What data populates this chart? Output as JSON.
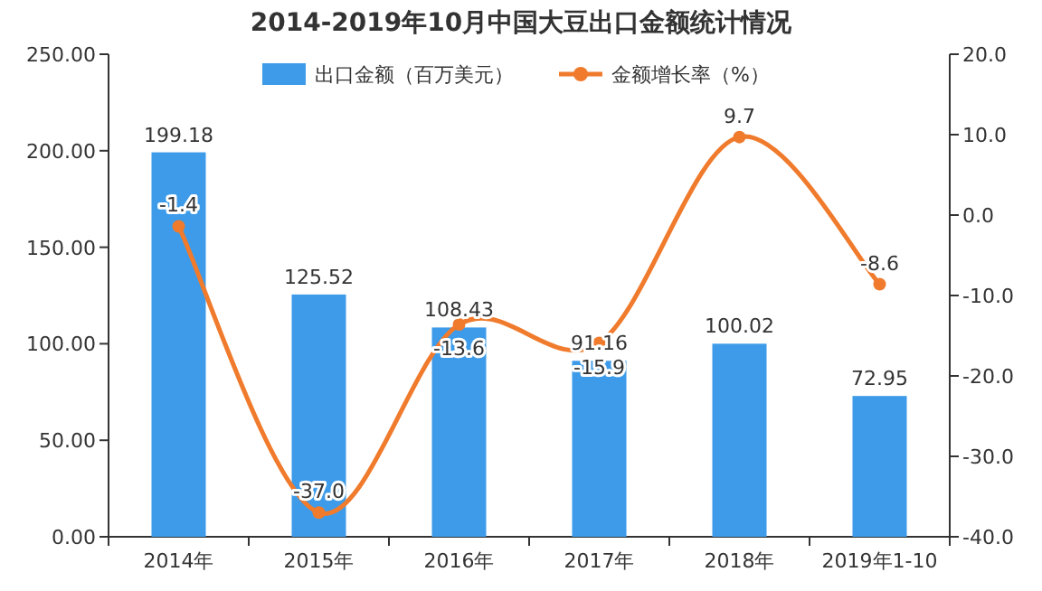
{
  "chart_data": {
    "type": "bar",
    "title": "2014-2019年10月中国大豆出口金额统计情况",
    "categories": [
      "2014年",
      "2015年",
      "2016年",
      "2017年",
      "2018年",
      "2019年1-10"
    ],
    "series": [
      {
        "name": "出口金额（百万美元）",
        "color": "#3d9be9",
        "values": [
          199.18,
          125.52,
          108.43,
          91.16,
          100.02,
          72.95
        ],
        "value_labels": [
          "199.18",
          "125.52",
          "108.43",
          "91.16",
          "100.02",
          "72.95"
        ]
      },
      {
        "name": "金额增长率（%）",
        "type": "line",
        "axis": "y2",
        "color": "#f07b2d",
        "marker": "circle",
        "values": [
          -1.4,
          -37.0,
          -13.6,
          -15.9,
          9.7,
          -8.6
        ],
        "value_labels": [
          "-1.4",
          "-37.0",
          "-13.6",
          "-15.9",
          "9.7",
          "-8.6"
        ]
      }
    ],
    "ylim": [
      0,
      250
    ],
    "yticks": [
      {
        "value": 0,
        "label": "0.00"
      },
      {
        "value": 50,
        "label": "50.00"
      },
      {
        "value": 100,
        "label": "100.00"
      },
      {
        "value": 150,
        "label": "150.00"
      },
      {
        "value": 200,
        "label": "200.00"
      },
      {
        "value": 250,
        "label": "250.00"
      }
    ],
    "y2lim": [
      -40,
      20
    ],
    "y2ticks": [
      {
        "value": -40,
        "label": "-40.0"
      },
      {
        "value": -30,
        "label": "-30.0"
      },
      {
        "value": -20,
        "label": "-20.0"
      },
      {
        "value": -10,
        "label": "-10.0"
      },
      {
        "value": 0,
        "label": "0.0"
      },
      {
        "value": 10,
        "label": "10.0"
      },
      {
        "value": 20,
        "label": "20.0"
      }
    ],
    "legend": "top",
    "grid": false
  }
}
